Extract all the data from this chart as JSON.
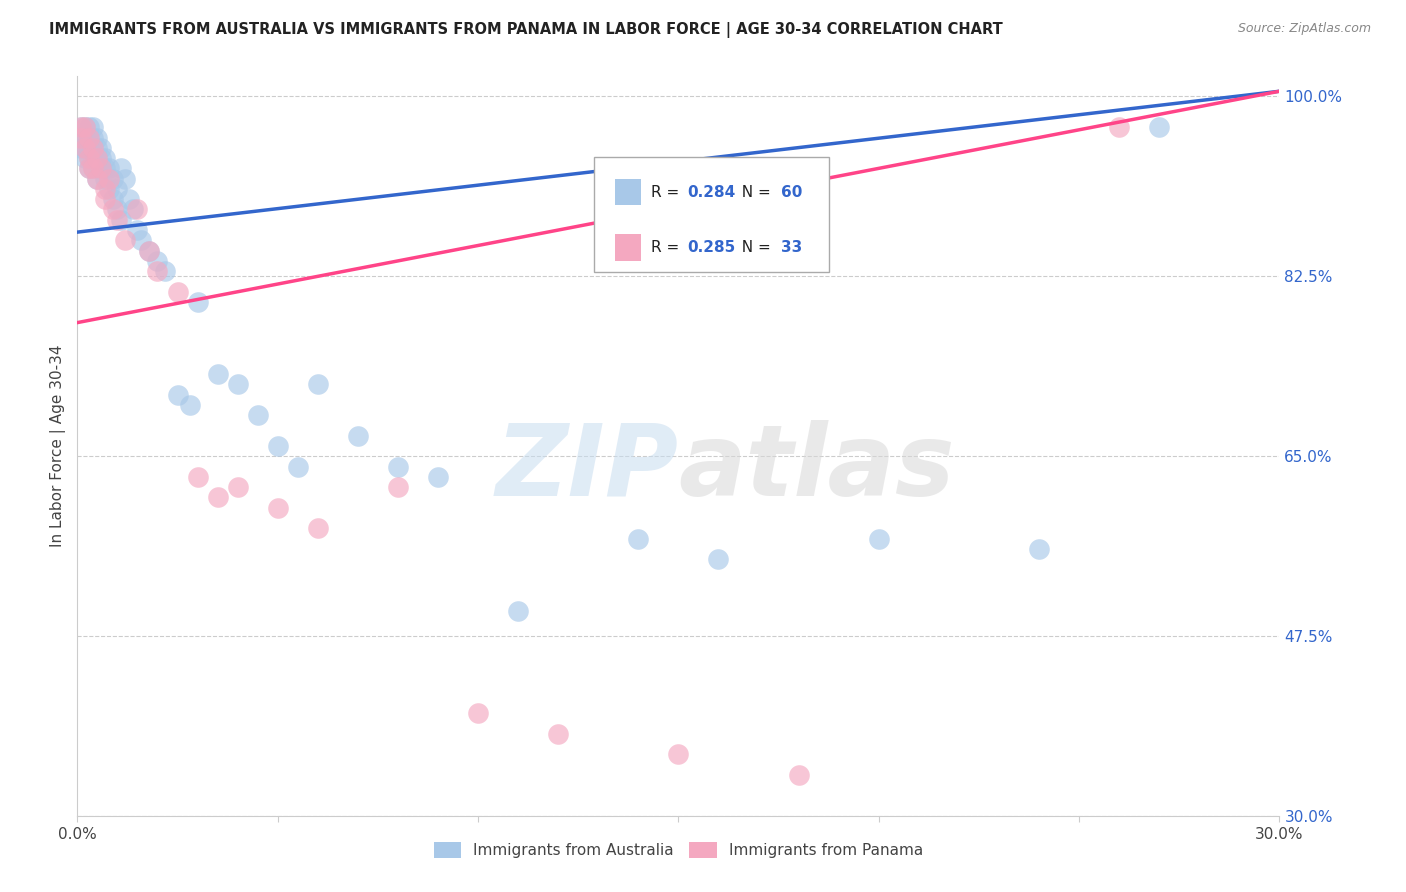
{
  "title": "IMMIGRANTS FROM AUSTRALIA VS IMMIGRANTS FROM PANAMA IN LABOR FORCE | AGE 30-34 CORRELATION CHART",
  "source": "Source: ZipAtlas.com",
  "ylabel": "In Labor Force | Age 30-34",
  "xlim": [
    0.0,
    0.3
  ],
  "ylim": [
    0.3,
    1.02
  ],
  "xticks": [
    0.0,
    0.05,
    0.1,
    0.15,
    0.2,
    0.25,
    0.3
  ],
  "yticks": [
    0.3,
    0.475,
    0.65,
    0.825,
    1.0
  ],
  "ytick_labels": [
    "30.0%",
    "47.5%",
    "65.0%",
    "82.5%",
    "100.0%"
  ],
  "legend_label_australia": "Immigrants from Australia",
  "legend_label_panama": "Immigrants from Panama",
  "R_australia": 0.284,
  "N_australia": 60,
  "R_panama": 0.285,
  "N_panama": 33,
  "color_australia": "#a8c8e8",
  "color_panama": "#f4a8c0",
  "line_color_australia": "#3366cc",
  "line_color_panama": "#ff4488",
  "background_color": "#ffffff",
  "grid_color": "#cccccc",
  "aus_x": [
    0.001,
    0.001,
    0.001,
    0.002,
    0.002,
    0.002,
    0.002,
    0.003,
    0.003,
    0.003,
    0.003,
    0.003,
    0.004,
    0.004,
    0.004,
    0.004,
    0.005,
    0.005,
    0.005,
    0.005,
    0.006,
    0.006,
    0.006,
    0.007,
    0.007,
    0.007,
    0.008,
    0.008,
    0.009,
    0.009,
    0.01,
    0.01,
    0.011,
    0.011,
    0.012,
    0.013,
    0.014,
    0.015,
    0.016,
    0.018,
    0.02,
    0.022,
    0.025,
    0.028,
    0.03,
    0.035,
    0.04,
    0.045,
    0.05,
    0.055,
    0.06,
    0.07,
    0.08,
    0.09,
    0.11,
    0.14,
    0.16,
    0.2,
    0.24,
    0.27
  ],
  "aus_y": [
    0.97,
    0.96,
    0.95,
    0.97,
    0.96,
    0.95,
    0.94,
    0.97,
    0.96,
    0.95,
    0.94,
    0.93,
    0.97,
    0.96,
    0.95,
    0.93,
    0.96,
    0.95,
    0.94,
    0.92,
    0.95,
    0.94,
    0.93,
    0.94,
    0.93,
    0.92,
    0.93,
    0.91,
    0.92,
    0.9,
    0.91,
    0.89,
    0.93,
    0.88,
    0.92,
    0.9,
    0.89,
    0.87,
    0.86,
    0.85,
    0.84,
    0.83,
    0.71,
    0.7,
    0.8,
    0.73,
    0.72,
    0.69,
    0.66,
    0.64,
    0.72,
    0.67,
    0.64,
    0.63,
    0.5,
    0.57,
    0.55,
    0.57,
    0.56,
    0.97
  ],
  "pan_x": [
    0.001,
    0.001,
    0.002,
    0.002,
    0.003,
    0.003,
    0.003,
    0.004,
    0.004,
    0.005,
    0.005,
    0.006,
    0.007,
    0.007,
    0.008,
    0.009,
    0.01,
    0.012,
    0.015,
    0.018,
    0.02,
    0.025,
    0.03,
    0.035,
    0.04,
    0.05,
    0.06,
    0.08,
    0.1,
    0.12,
    0.15,
    0.18,
    0.26
  ],
  "pan_y": [
    0.97,
    0.96,
    0.97,
    0.95,
    0.96,
    0.94,
    0.93,
    0.95,
    0.93,
    0.94,
    0.92,
    0.93,
    0.91,
    0.9,
    0.92,
    0.89,
    0.88,
    0.86,
    0.89,
    0.85,
    0.83,
    0.81,
    0.63,
    0.61,
    0.62,
    0.6,
    0.58,
    0.62,
    0.4,
    0.38,
    0.36,
    0.34,
    0.97
  ],
  "line_aus_x0": 0.0,
  "line_aus_y0": 0.868,
  "line_aus_x1": 0.3,
  "line_aus_y1": 1.005,
  "line_pan_x0": 0.0,
  "line_pan_y0": 0.78,
  "line_pan_x1": 0.3,
  "line_pan_y1": 1.005
}
